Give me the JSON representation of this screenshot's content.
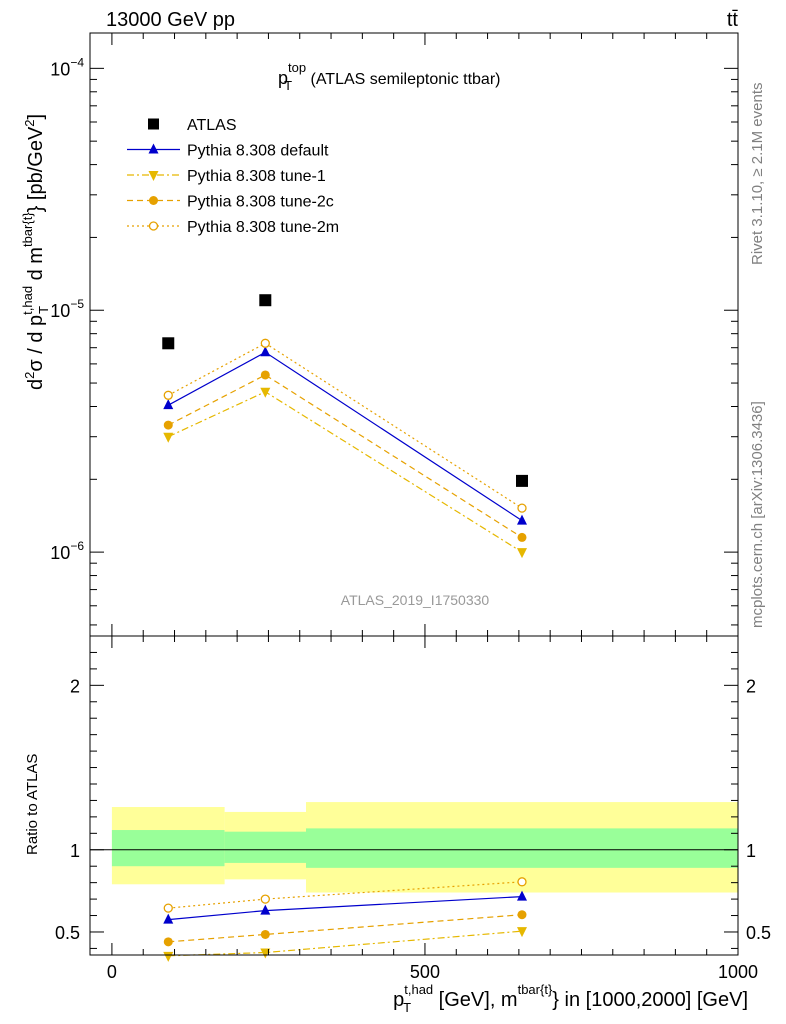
{
  "header": {
    "left": "13000 GeV pp",
    "right": "tt̄"
  },
  "side_labels": {
    "rivet": "Rivet 3.1.10, ≥ 2.1M events",
    "mcplots": "mcplots.cern.ch [arXiv:1306.3436]"
  },
  "chart_data": {
    "type": "scatter",
    "title_main": "p",
    "title_sup": "top",
    "title_sub": "T",
    "title_rest": " (ATLAS semileptonic ttbar)",
    "watermark": "ATLAS_2019_I1750330",
    "y_label": "d²σ / d p_T^{t,had} d m^{tbar{t}} [pb/GeV²]",
    "x_label": "p_T^{t,had} [GeV], m^{tbar{t}} in [1000,2000] [GeV]",
    "ratio_label": "Ratio to ATLAS",
    "main_yscale": "log",
    "main_ylim": [
      4.5e-07,
      0.00014
    ],
    "ratio_ylim": [
      0.36,
      2.3
    ],
    "xlim": [
      -35,
      1000
    ],
    "x_ticks": [
      0,
      500,
      1000
    ],
    "main_yticks": [
      {
        "value": 1e-06,
        "base": "10",
        "exp": "−6"
      },
      {
        "value": 1e-05,
        "base": "10",
        "exp": "−5"
      },
      {
        "value": 0.0001,
        "base": "10",
        "exp": "−4"
      }
    ],
    "ratio_yticks": [
      {
        "value": 0.5,
        "label": "0.5"
      },
      {
        "value": 1,
        "label": "1"
      },
      {
        "value": 2,
        "label": "2"
      }
    ],
    "bins": [
      [
        0,
        180
      ],
      [
        180,
        310
      ],
      [
        310,
        1000
      ]
    ],
    "band_yellow": [
      [
        0.79,
        1.26
      ],
      [
        0.82,
        1.23
      ],
      [
        0.74,
        1.29
      ]
    ],
    "band_green": [
      [
        0.9,
        1.12
      ],
      [
        0.92,
        1.11
      ],
      [
        0.89,
        1.13
      ]
    ],
    "series": [
      {
        "name": "ATLAS",
        "marker": "square",
        "color": "#000000",
        "line": "none",
        "x": [
          90,
          245,
          655
        ],
        "y": [
          7.3e-06,
          1.1e-05,
          1.97e-06
        ],
        "ratio": null
      },
      {
        "name": "Pythia 8.308 default",
        "marker": "triangle-up",
        "color": "#0000cc",
        "line": "solid",
        "x": [
          90,
          245,
          655
        ],
        "y": [
          4.05e-06,
          6.7e-06,
          1.35e-06
        ],
        "ratio": [
          0.575,
          0.63,
          0.715
        ]
      },
      {
        "name": "Pythia 8.308 tune-1",
        "marker": "triangle-down",
        "color": "#e6b800",
        "line": "dashdot",
        "x": [
          90,
          245,
          655
        ],
        "y": [
          3e-06,
          4.6e-06,
          1e-06
        ],
        "ratio": [
          0.355,
          0.375,
          0.505
        ]
      },
      {
        "name": "Pythia 8.308 tune-2c",
        "marker": "circle",
        "color": "#e6a100",
        "line": "dashed",
        "x": [
          90,
          245,
          655
        ],
        "y": [
          3.35e-06,
          5.4e-06,
          1.15e-06
        ],
        "ratio": [
          0.44,
          0.485,
          0.605
        ]
      },
      {
        "name": "Pythia 8.308 tune-2m",
        "marker": "circle-open",
        "color": "#e6a100",
        "line": "dotted",
        "x": [
          90,
          245,
          655
        ],
        "y": [
          4.45e-06,
          7.3e-06,
          1.52e-06
        ],
        "ratio": [
          0.645,
          0.7,
          0.805
        ]
      }
    ]
  }
}
